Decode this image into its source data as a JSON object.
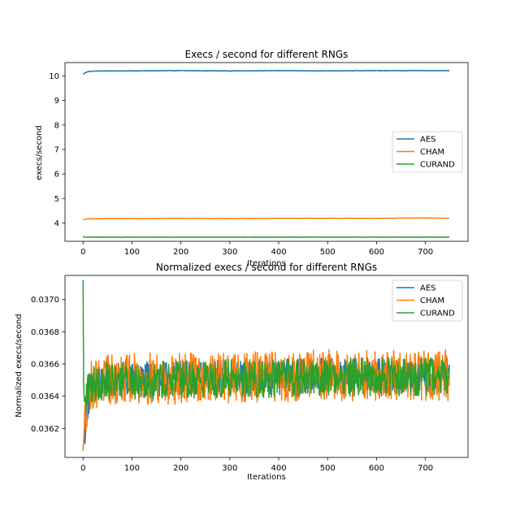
{
  "chart_data": [
    {
      "type": "line",
      "title": "Execs / second for different RNGs",
      "xlabel": "Iterations",
      "ylabel": "execs/second",
      "xlim": [
        -37,
        787
      ],
      "ylim": [
        3.25,
        10.55
      ],
      "xticks": [
        0,
        100,
        200,
        300,
        400,
        500,
        600,
        700
      ],
      "yticks": [
        4,
        5,
        6,
        7,
        8,
        9,
        10
      ],
      "legend": "center-right",
      "series": [
        {
          "name": "AES",
          "color": "#1f77b4",
          "x": [
            0,
            5,
            10,
            20,
            50,
            100,
            200,
            300,
            400,
            500,
            600,
            700,
            749
          ],
          "y": [
            10.08,
            10.14,
            10.18,
            10.2,
            10.21,
            10.21,
            10.22,
            10.21,
            10.22,
            10.21,
            10.22,
            10.22,
            10.22
          ]
        },
        {
          "name": "CHAM",
          "color": "#ff7f0e",
          "x": [
            0,
            5,
            10,
            50,
            100,
            200,
            300,
            400,
            500,
            600,
            700,
            749
          ],
          "y": [
            4.13,
            4.16,
            4.17,
            4.18,
            4.18,
            4.19,
            4.18,
            4.19,
            4.19,
            4.19,
            4.2,
            4.19
          ]
        },
        {
          "name": "CURAND",
          "color": "#2ca02c",
          "x": [
            0,
            2,
            5,
            50,
            100,
            200,
            300,
            400,
            500,
            600,
            700,
            749
          ],
          "y": [
            3.47,
            3.42,
            3.42,
            3.42,
            3.42,
            3.42,
            3.42,
            3.42,
            3.42,
            3.42,
            3.42,
            3.42
          ]
        }
      ]
    },
    {
      "type": "line",
      "title": "Normalized execs / second for different RNGs",
      "xlabel": "Iterations",
      "ylabel": "Normalized execs/second",
      "xlim": [
        -37,
        787
      ],
      "ylim": [
        0.03602,
        0.03715
      ],
      "xticks": [
        0,
        100,
        200,
        300,
        400,
        500,
        600,
        700
      ],
      "yticks": [
        0.0362,
        0.0364,
        0.0366,
        0.0368,
        0.037
      ],
      "yticklabels": [
        "0.0362",
        "0.0364",
        "0.0366",
        "0.0368",
        "0.0370"
      ],
      "legend": "top-right",
      "series": [
        {
          "name": "AES",
          "color": "#1f77b4",
          "x": [
            0,
            5,
            10,
            20,
            50,
            100,
            200,
            300,
            400,
            500,
            600,
            700,
            749
          ],
          "y": [
            0.03608,
            0.03625,
            0.03638,
            0.03645,
            0.0365,
            0.0365,
            0.03651,
            0.03652,
            0.03652,
            0.03653,
            0.03653,
            0.03653,
            0.03653
          ],
          "noise": 0.00011
        },
        {
          "name": "CHAM",
          "color": "#ff7f0e",
          "x": [
            0,
            5,
            10,
            20,
            50,
            100,
            200,
            300,
            400,
            500,
            600,
            700,
            749
          ],
          "y": [
            0.03606,
            0.0363,
            0.03642,
            0.03648,
            0.0365,
            0.03651,
            0.03651,
            0.03651,
            0.03652,
            0.03653,
            0.03653,
            0.03653,
            0.03653
          ],
          "noise": 0.00016
        },
        {
          "name": "CURAND",
          "color": "#2ca02c",
          "x": [
            0,
            1,
            3,
            6,
            10,
            20,
            50,
            100,
            200,
            300,
            400,
            500,
            600,
            700,
            749
          ],
          "y": [
            0.03712,
            0.0365,
            0.0363,
            0.0364,
            0.03645,
            0.03648,
            0.0365,
            0.0365,
            0.0365,
            0.03651,
            0.03651,
            0.03652,
            0.03652,
            0.03652,
            0.03652
          ],
          "noise": 0.00012
        }
      ]
    }
  ]
}
